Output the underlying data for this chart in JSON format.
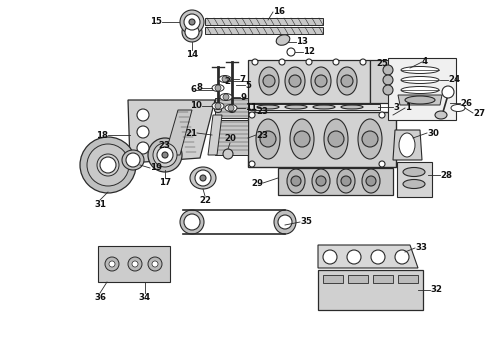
{
  "bg_color": "#ffffff",
  "line_color": "#2a2a2a",
  "part_fill": "#d4d4d4",
  "label_fontsize": 6.2,
  "label_color": "#111111",
  "fig_width": 4.9,
  "fig_height": 3.6,
  "dpi": 100
}
